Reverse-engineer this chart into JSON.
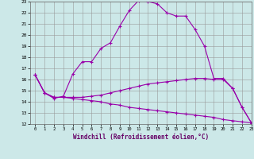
{
  "xlabel": "Windchill (Refroidissement éolien,°C)",
  "x_values": [
    0,
    1,
    2,
    3,
    4,
    5,
    6,
    7,
    8,
    9,
    10,
    11,
    12,
    13,
    14,
    15,
    16,
    17,
    18,
    19,
    20,
    21,
    22,
    23
  ],
  "line1_y": [
    16.4,
    14.8,
    14.3,
    14.5,
    16.5,
    17.6,
    17.6,
    18.8,
    19.3,
    20.8,
    22.2,
    23.1,
    23.0,
    22.8,
    22.0,
    21.7,
    21.7,
    20.5,
    19.0,
    16.1,
    16.1,
    15.2,
    13.5,
    12.1
  ],
  "line2_y": [
    16.4,
    14.8,
    14.4,
    14.4,
    14.4,
    14.4,
    14.5,
    14.6,
    14.8,
    15.0,
    15.2,
    15.4,
    15.6,
    15.7,
    15.8,
    15.9,
    16.0,
    16.1,
    16.1,
    16.0,
    16.0,
    15.2,
    13.5,
    12.1
  ],
  "line3_y": [
    16.4,
    14.8,
    14.4,
    14.4,
    14.3,
    14.2,
    14.1,
    14.0,
    13.8,
    13.7,
    13.5,
    13.4,
    13.3,
    13.2,
    13.1,
    13.0,
    12.9,
    12.8,
    12.7,
    12.6,
    12.4,
    12.3,
    12.2,
    12.1
  ],
  "ylim": [
    12,
    23
  ],
  "xlim": [
    -0.5,
    23
  ],
  "line_color": "#9900aa",
  "bg_color": "#cce8e8",
  "grid_color": "#999999"
}
